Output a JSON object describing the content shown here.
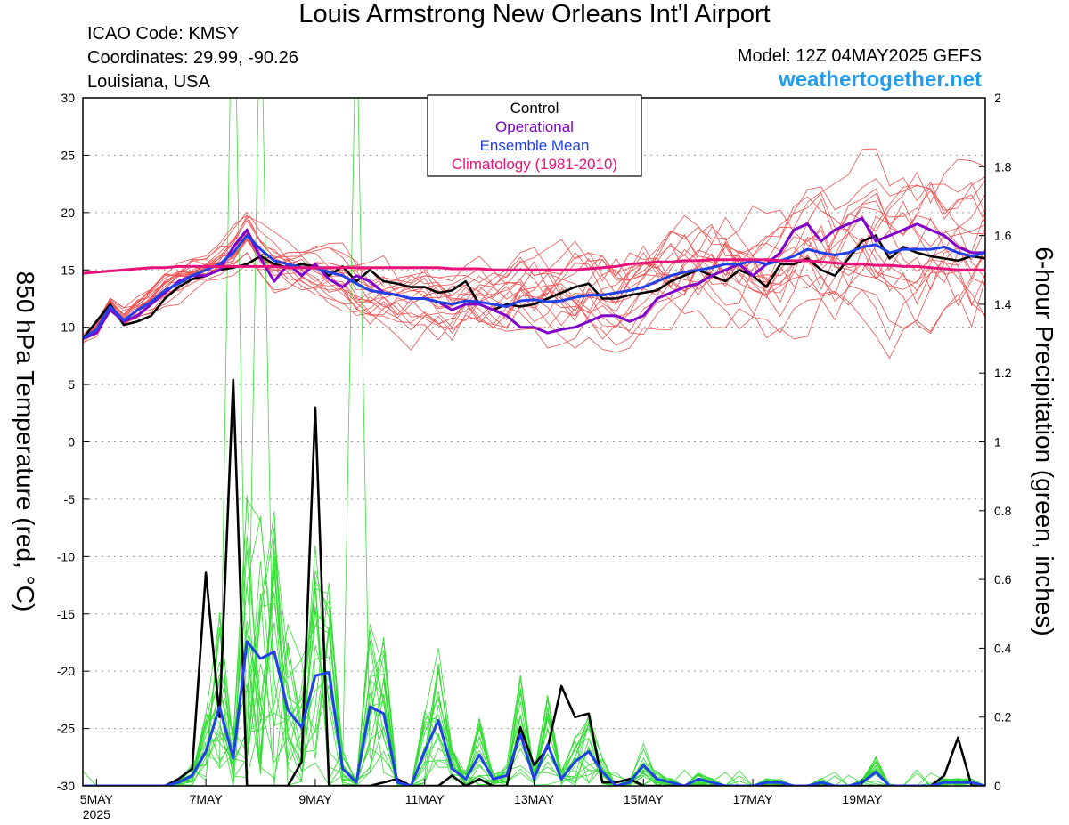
{
  "header": {
    "title": "Louis Armstrong New Orleans Int'l Airport",
    "icao": "ICAO Code: KMSY",
    "coordinates": "Coordinates: 29.99, -90.26",
    "region": "Louisiana, USA",
    "model": "Model: 12Z 04MAY2025 GEFS",
    "site": "weathertogether.net"
  },
  "colors": {
    "control": "#000000",
    "operational": "#8000cc",
    "ensemble_mean": "#2040e8",
    "climatology": "#e8137a",
    "members_temp": "#f05050",
    "members_precip": "#33dd33",
    "site": "#1e9cf0"
  },
  "chart_data": {
    "type": "line",
    "xlabel": "",
    "ylabel_left": "850 hPa Temperature (red, °C)",
    "ylabel_right": "6-hour Precipitation (green, inches)",
    "ylim_left": [
      -30,
      30
    ],
    "ylim_right": [
      0,
      2
    ],
    "yticks_left": [
      "30",
      "25",
      "20",
      "15",
      "10",
      "5",
      "0",
      "-5",
      "-10",
      "-15",
      "-20",
      "-25",
      "-30"
    ],
    "yticks_right": [
      "2",
      "1.8",
      "1.6",
      "1.4",
      "1.2",
      "1",
      "0.8",
      "0.6",
      "0.4",
      "0.2",
      "0"
    ],
    "x_start": "2025-05-04T18Z",
    "x_step_hours": 6,
    "x_ticks": [
      {
        "label": "5MAY",
        "sub": "2025",
        "index": 1
      },
      {
        "label": "7MAY",
        "index": 9
      },
      {
        "label": "9MAY",
        "index": 17
      },
      {
        "label": "11MAY",
        "index": 25
      },
      {
        "label": "13MAY",
        "index": 33
      },
      {
        "label": "15MAY",
        "index": 41
      },
      {
        "label": "17MAY",
        "index": 49
      },
      {
        "label": "19MAY",
        "index": 57
      }
    ],
    "legend": {
      "position": "top-center",
      "entries": [
        "Control",
        "Operational",
        "Ensemble Mean",
        "Climatology (1981-2010)"
      ]
    },
    "grid": "dotted horizontal",
    "series": [
      {
        "name": "Control",
        "axis": "left",
        "values": [
          9,
          10.5,
          12,
          10.2,
          10.5,
          11,
          12.5,
          13.5,
          14.2,
          14.5,
          15,
          15.2,
          15.5,
          16.2,
          15.5,
          15.2,
          15.5,
          15.3,
          14.5,
          15.3,
          14,
          15,
          14,
          13.8,
          13.5,
          13.5,
          13,
          13.2,
          14,
          12,
          11.5,
          12,
          11.8,
          12,
          12.5,
          13,
          13.5,
          13.8,
          12.5,
          12.5,
          12.8,
          13,
          13.2,
          14,
          14.5,
          15,
          14.5,
          14,
          15,
          14.5,
          13.5,
          15.5,
          15.5,
          16,
          15,
          14.5,
          16,
          17.5,
          18,
          16,
          17,
          16.5,
          16.2,
          16,
          15.8,
          16.2,
          16
        ]
      },
      {
        "name": "Operational",
        "axis": "left",
        "values": [
          9,
          9.5,
          11.5,
          10.5,
          11,
          12,
          13,
          14,
          14.5,
          14.5,
          15,
          17,
          18.5,
          16,
          14,
          15.5,
          14.5,
          15.5,
          14.2,
          13.5,
          14.5,
          14,
          13,
          12.8,
          12.5,
          12.5,
          12.2,
          11.5,
          12,
          12,
          11.5,
          11,
          10,
          10,
          9.5,
          9.8,
          10,
          10.5,
          11,
          11,
          10.5,
          11,
          12.5,
          13,
          13.5,
          13.8,
          14.5,
          15,
          15.5,
          14.5,
          15.5,
          16.5,
          18.5,
          19,
          17.5,
          18.5,
          19,
          19.5,
          17.5,
          18,
          18.5,
          19,
          18.5,
          18,
          17,
          16.5,
          16.5
        ]
      },
      {
        "name": "Ensemble Mean",
        "axis": "left",
        "values": [
          9,
          9.8,
          11.8,
          10.6,
          11.5,
          12.2,
          13.2,
          13.8,
          14.5,
          15,
          15.5,
          16.5,
          18,
          16.8,
          15.8,
          15.5,
          15.2,
          15.2,
          14.8,
          14.5,
          13.8,
          13.2,
          13,
          12.8,
          12.5,
          12.5,
          12.2,
          12,
          12.3,
          12.2,
          12,
          11.8,
          12.3,
          12.4,
          12.2,
          12.3,
          12.6,
          12.8,
          12.8,
          13,
          13.2,
          13.5,
          14,
          14.5,
          14.8,
          15,
          15.2,
          15.5,
          15.5,
          15.8,
          15.5,
          15.8,
          16.2,
          16.8,
          16.5,
          16.3,
          16.5,
          17,
          17.2,
          16.5,
          16.8,
          16.8,
          16.8,
          17,
          16.5,
          16.2,
          16.5
        ]
      },
      {
        "name": "Climatology (1981-2010)",
        "axis": "left",
        "values": [
          14.7,
          14.8,
          14.9,
          15,
          15.1,
          15.2,
          15.2,
          15.3,
          15.3,
          15.3,
          15.3,
          15.3,
          15.3,
          15.3,
          15.3,
          15.2,
          15.2,
          15.2,
          15.2,
          15.2,
          15.2,
          15.2,
          15.2,
          15.2,
          15.2,
          15.2,
          15.2,
          15.1,
          15.1,
          15.1,
          15,
          15,
          15,
          15,
          15,
          15,
          15,
          15.1,
          15.2,
          15.3,
          15.5,
          15.6,
          15.7,
          15.7,
          15.8,
          15.8,
          15.9,
          15.9,
          15.9,
          15.9,
          15.9,
          15.8,
          15.8,
          15.8,
          15.7,
          15.6,
          15.5,
          15.5,
          15.4,
          15.4,
          15.3,
          15.3,
          15.2,
          15.1,
          15,
          15,
          15
        ]
      },
      {
        "name": "Control",
        "axis": "right",
        "values": [
          0,
          0,
          0,
          0,
          0,
          0,
          0,
          0.02,
          0.05,
          0.62,
          0.2,
          1.18,
          0,
          0,
          0,
          0,
          0.07,
          1.1,
          0,
          0,
          0,
          0,
          0.01,
          0.02,
          0,
          0,
          0,
          0.03,
          0,
          0.02,
          0,
          0,
          0.17,
          0.06,
          0.11,
          0.29,
          0.2,
          0.21,
          0.01,
          0.01,
          0.02,
          0,
          0,
          0,
          0,
          0,
          0,
          0,
          0,
          0,
          0,
          0,
          0,
          0,
          0,
          0,
          0,
          0,
          0,
          0,
          0,
          0,
          0,
          0.03,
          0.14,
          0,
          0
        ]
      },
      {
        "name": "Ensemble Mean",
        "axis": "right",
        "values": [
          0,
          0,
          0,
          0,
          0,
          0,
          0,
          0.01,
          0.03,
          0.1,
          0.23,
          0.08,
          0.42,
          0.37,
          0.39,
          0.22,
          0.17,
          0.32,
          0.33,
          0.05,
          0.01,
          0.23,
          0.21,
          0.01,
          0,
          0.1,
          0.19,
          0.05,
          0.02,
          0.09,
          0.02,
          0.03,
          0.15,
          0.02,
          0.12,
          0.02,
          0.07,
          0.1,
          0.04,
          0,
          0.01,
          0.06,
          0.02,
          0.01,
          0,
          0.02,
          0.01,
          0,
          0,
          0,
          0.01,
          0.01,
          0,
          0,
          0.01,
          0,
          0,
          0.01,
          0.04,
          0,
          0,
          0,
          0,
          0.01,
          0.01,
          0.01,
          0
        ]
      }
    ]
  }
}
